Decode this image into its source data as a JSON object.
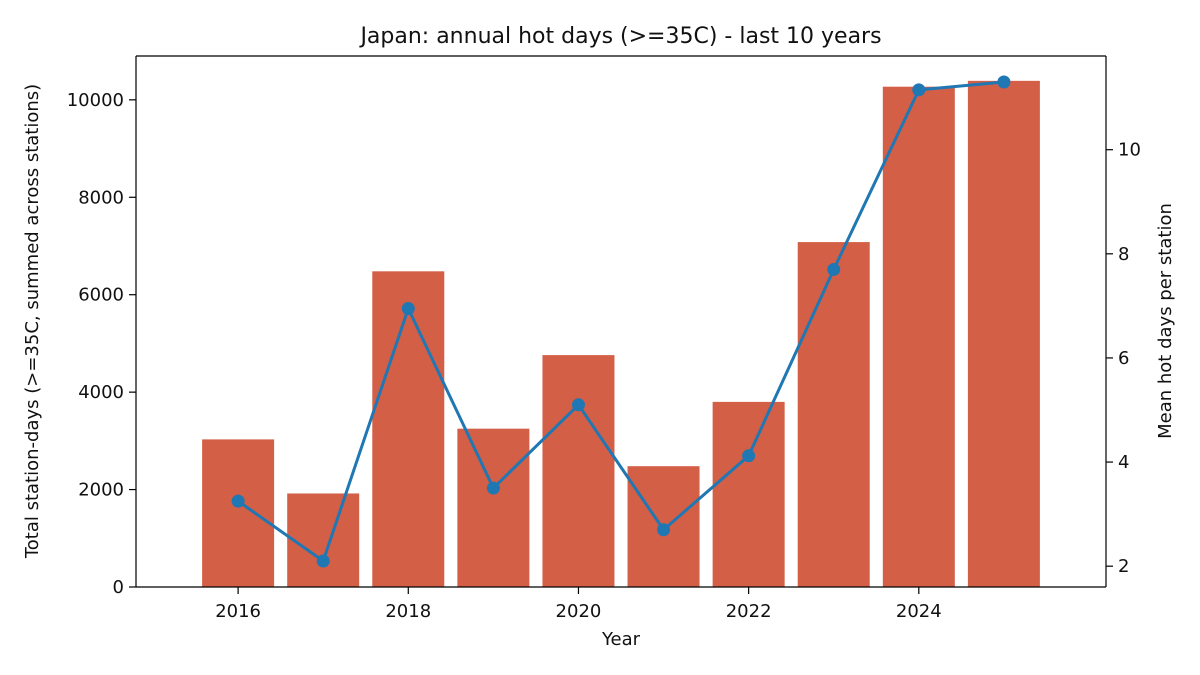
{
  "chart_data": {
    "type": "bar",
    "title": "Japan: annual hot days (>=35C) - last 10 years",
    "xlabel": "Year",
    "ylabel_left": "Total station-days (>=35C, summed across stations)",
    "ylabel_right": "Mean hot days per station",
    "x": [
      2016,
      2017,
      2018,
      2019,
      2020,
      2021,
      2022,
      2023,
      2024,
      2025
    ],
    "x_ticks": [
      2016,
      2018,
      2020,
      2022,
      2024
    ],
    "left_y_ticks": [
      0,
      2000,
      4000,
      6000,
      8000,
      10000
    ],
    "right_y_ticks": [
      2,
      4,
      6,
      8,
      10
    ],
    "left_ylim": [
      0,
      10900
    ],
    "right_ylim": [
      1.6,
      11.8
    ],
    "xlim": [
      2014.8,
      2026.2
    ],
    "grid": false,
    "series": [
      {
        "type": "bar",
        "axis": "left",
        "values": [
          3030,
          1920,
          6480,
          3250,
          4760,
          2480,
          3800,
          7080,
          10270,
          10390
        ],
        "color": "#d35f47"
      },
      {
        "type": "line",
        "axis": "right",
        "values": [
          3.25,
          2.1,
          6.95,
          3.5,
          5.1,
          2.7,
          4.12,
          7.7,
          11.15,
          11.3
        ],
        "color": "#1f77b4"
      }
    ]
  }
}
